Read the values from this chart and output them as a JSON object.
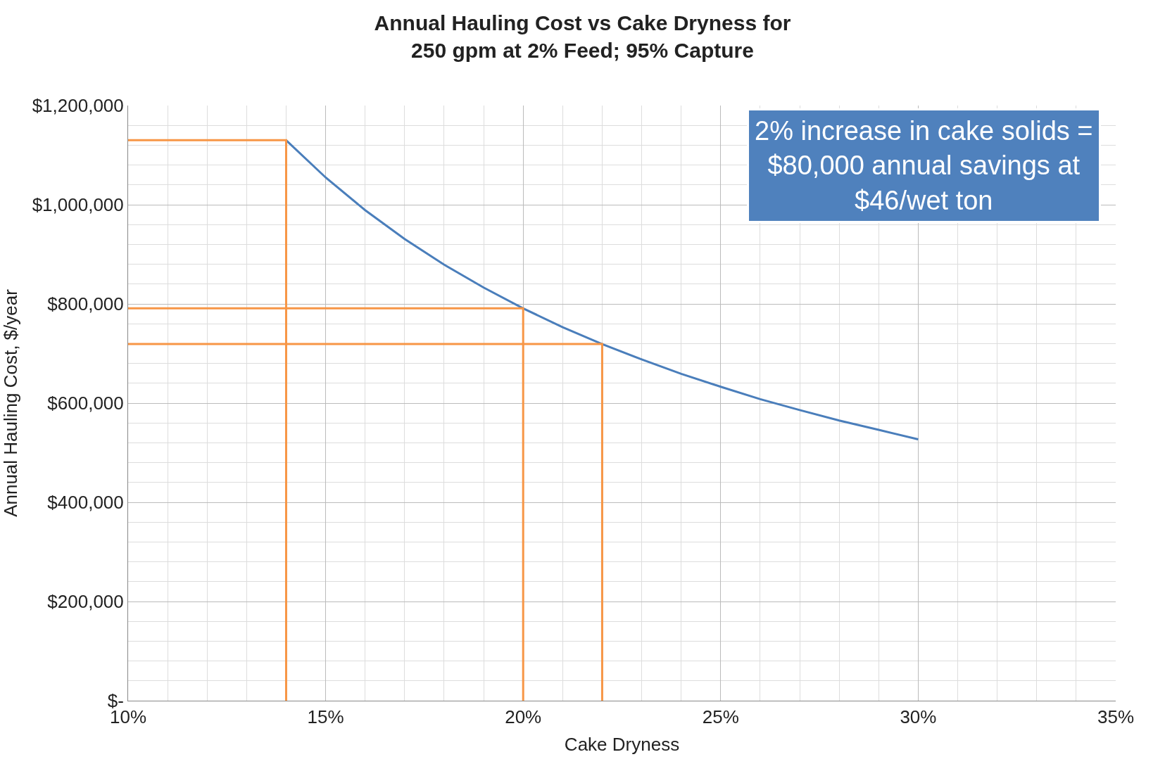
{
  "chart_data": {
    "type": "line",
    "title": "Annual Hauling Cost vs Cake Dryness for\n250 gpm at 2% Feed; 95% Capture",
    "xlabel": "Cake Dryness",
    "ylabel": "Annual Hauling Cost, $/year",
    "series": [
      {
        "color": "#4a7ebb",
        "x": [
          14,
          15,
          16,
          17,
          18,
          19,
          20,
          21,
          22,
          23,
          24,
          25,
          26,
          27,
          28,
          29,
          30
        ],
        "values": [
          1130000,
          1055000,
          989000,
          931000,
          879000,
          833000,
          791000,
          753000,
          719000,
          688000,
          659000,
          633000,
          608000,
          586000,
          565000,
          546000,
          527000
        ]
      },
      {
        "color": "#f79646",
        "x": [
          10,
          14,
          14
        ],
        "values": [
          1130000,
          1130000,
          0
        ]
      },
      {
        "color": "#f79646",
        "x": [
          10,
          20,
          20
        ],
        "values": [
          791000,
          791000,
          0
        ]
      },
      {
        "color": "#f79646",
        "x": [
          10,
          22,
          22
        ],
        "values": [
          719000,
          719000,
          0
        ]
      }
    ],
    "xlim": [
      10,
      35
    ],
    "xticks": [
      {
        "value": 10,
        "label": "10%"
      },
      {
        "value": 15,
        "label": "15%"
      },
      {
        "value": 20,
        "label": "20%"
      },
      {
        "value": 25,
        "label": "25%"
      },
      {
        "value": 30,
        "label": "30%"
      },
      {
        "value": 35,
        "label": "35%"
      }
    ],
    "ylim": [
      0,
      1200000
    ],
    "yticks": [
      {
        "value": 0,
        "label": "$-"
      },
      {
        "value": 200000,
        "label": "$200,000"
      },
      {
        "value": 400000,
        "label": "$400,000"
      },
      {
        "value": 600000,
        "label": "$600,000"
      },
      {
        "value": 800000,
        "label": "$800,000"
      },
      {
        "value": 1000000,
        "label": "$1,000,000"
      },
      {
        "value": 1200000,
        "label": "$1,200,000"
      }
    ],
    "grid": true,
    "marker": "none",
    "line_style": "solid",
    "annotations": [
      "2% increase in cake solids =\n$80,000 annual savings at\n$46/wet ton"
    ]
  }
}
